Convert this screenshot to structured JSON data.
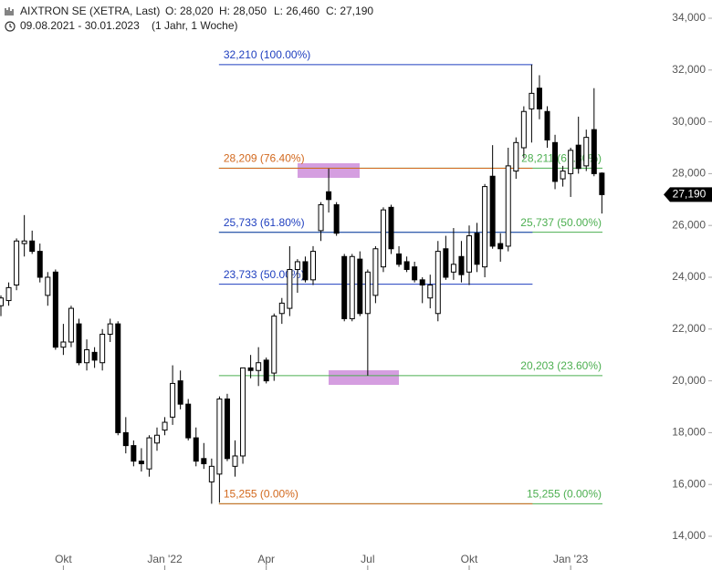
{
  "chart_data": {
    "type": "candlestick",
    "title": "AIXTRON SE (XETRA, Last)",
    "ohlc_labels": [
      "O: 28,020",
      "H: 28,050",
      "L: 26,460",
      "C: 27,190"
    ],
    "subtitle": "09.08.2021 - 30.01.2023",
    "period": "(1 Jahr, 1 Woche)",
    "categories": [
      null,
      null,
      null,
      null,
      null,
      null,
      null,
      null,
      "Okt",
      null,
      null,
      null,
      null,
      null,
      null,
      null,
      null,
      null,
      null,
      null,
      null,
      "Jan '22",
      null,
      null,
      null,
      null,
      null,
      null,
      null,
      null,
      null,
      null,
      null,
      null,
      "Apr",
      null,
      null,
      null,
      null,
      null,
      null,
      null,
      null,
      null,
      null,
      null,
      null,
      "Jul",
      null,
      null,
      null,
      null,
      null,
      null,
      null,
      null,
      null,
      null,
      null,
      null,
      "Okt",
      null,
      null,
      null,
      null,
      null,
      null,
      null,
      null,
      null,
      null,
      null,
      null,
      "Jan '23",
      null,
      null,
      null,
      null
    ],
    "open": [
      22900,
      23100,
      23700,
      25300,
      25400,
      25000,
      23300,
      24200,
      21300,
      21500,
      22200,
      20700,
      21100,
      20700,
      21800,
      22200,
      18000,
      17500,
      16900,
      16600,
      17600,
      18100,
      18600,
      20000,
      19100,
      17800,
      17000,
      16100,
      16400,
      19300,
      16700,
      17100,
      20500,
      20400,
      20800,
      20300,
      22600,
      22800,
      24300,
      24600,
      23900,
      25800,
      27300,
      26800,
      24800,
      22400,
      24700,
      22600,
      23300,
      24400,
      26700,
      24900,
      24600,
      24400,
      23900,
      23200,
      22600,
      25100,
      24200,
      24800,
      24200,
      25700,
      24400,
      27900,
      25300,
      25200,
      28100,
      29000,
      30500,
      31300,
      30400,
      29200,
      27800,
      28000,
      29100,
      28300,
      29700,
      28020
    ],
    "high": [
      23300,
      23800,
      25500,
      26400,
      25800,
      25300,
      24200,
      24300,
      22200,
      22900,
      22400,
      21600,
      21300,
      22000,
      22400,
      22300,
      18600,
      17700,
      17400,
      17900,
      18200,
      18600,
      20600,
      20400,
      19300,
      18200,
      17600,
      17000,
      19400,
      19500,
      17700,
      20500,
      21000,
      21300,
      20900,
      22600,
      23200,
      25200,
      24700,
      24800,
      25200,
      26900,
      28200,
      26900,
      24900,
      24900,
      25000,
      24300,
      25200,
      26700,
      26800,
      25200,
      24800,
      24600,
      24000,
      24100,
      25400,
      25600,
      25900,
      25400,
      26000,
      26100,
      27600,
      29100,
      25700,
      29000,
      29400,
      30600,
      32210,
      31800,
      30600,
      29500,
      28300,
      29000,
      30200,
      29700,
      31300,
      28050
    ],
    "low": [
      22500,
      22900,
      23500,
      24800,
      24900,
      23800,
      22900,
      21200,
      21000,
      21300,
      20600,
      20400,
      20500,
      20400,
      21500,
      17900,
      17200,
      16700,
      16500,
      16300,
      17300,
      17900,
      18300,
      18900,
      17700,
      16700,
      16600,
      15255,
      15300,
      16900,
      16300,
      16800,
      20100,
      19800,
      19900,
      20000,
      22200,
      22500,
      23400,
      23800,
      23700,
      25400,
      26500,
      25600,
      22300,
      22300,
      22500,
      20203,
      23000,
      24200,
      24900,
      24400,
      24200,
      23800,
      23000,
      22800,
      22300,
      23900,
      23900,
      23800,
      23700,
      24200,
      24000,
      25100,
      24600,
      25000,
      27800,
      28600,
      29200,
      30100,
      29000,
      27400,
      27500,
      27100,
      28000,
      28100,
      27900,
      26460
    ],
    "close": [
      23200,
      23600,
      25400,
      25400,
      25000,
      24000,
      24000,
      21300,
      21500,
      22800,
      20700,
      21200,
      20800,
      21800,
      22200,
      18000,
      17500,
      16900,
      16800,
      17800,
      17900,
      18400,
      19900,
      19100,
      17800,
      16900,
      16800,
      16700,
      19300,
      17000,
      17100,
      20500,
      20400,
      20700,
      20000,
      22500,
      23000,
      24300,
      24600,
      23900,
      25000,
      26800,
      27000,
      25700,
      22400,
      24800,
      22600,
      24200,
      25100,
      26600,
      25100,
      24500,
      24300,
      23900,
      23700,
      23700,
      25000,
      24000,
      24500,
      24100,
      25600,
      24500,
      27500,
      25200,
      25100,
      28300,
      29200,
      30400,
      31100,
      30500,
      29300,
      27700,
      28100,
      28900,
      28200,
      29400,
      28000,
      27190
    ],
    "up_color": "#ffffff",
    "down_color": "#000000",
    "ylim": [
      14000,
      34000
    ],
    "yticks": [
      {
        "value": 14000,
        "label": "14,000"
      },
      {
        "value": 16000,
        "label": "16,000"
      },
      {
        "value": 18000,
        "label": "18,000"
      },
      {
        "value": 20000,
        "label": "20,000"
      },
      {
        "value": 22000,
        "label": "22,000"
      },
      {
        "value": 24000,
        "label": "24,000"
      },
      {
        "value": 26000,
        "label": "26,000"
      },
      {
        "value": 28000,
        "label": "28,000"
      },
      {
        "value": 30000,
        "label": "30,000"
      },
      {
        "value": 32000,
        "label": "32,000"
      },
      {
        "value": 34000,
        "label": "34,000"
      }
    ],
    "last_price": {
      "value": 27190,
      "label": "27,190"
    },
    "fib_left": [
      {
        "value": 32210,
        "label": "32,210 (100.00%)",
        "color": "#1f3fbf"
      },
      {
        "value": 28209,
        "label": "28,209 (76.40%)",
        "color": "#d2691e"
      },
      {
        "value": 25733,
        "label": "25,733 (61.80%)",
        "color": "#1f3fbf"
      },
      {
        "value": 23733,
        "label": "23,733 (50.00%)",
        "color": "#1f3fbf"
      },
      {
        "value": 15255,
        "label": "15,255 (0.00%)",
        "color": "#d2691e"
      }
    ],
    "fib_right": [
      {
        "value": 28211,
        "label": "28,211 (61.80%)",
        "color": "#4caf50"
      },
      {
        "value": 25737,
        "label": "25,737 (50.00%)",
        "color": "#4caf50"
      },
      {
        "value": 20203,
        "label": "20,203 (23.60%)",
        "color": "#4caf50"
      },
      {
        "value": 15255,
        "label": "15,255 (0.00%)",
        "color": "#4caf50"
      }
    ]
  }
}
